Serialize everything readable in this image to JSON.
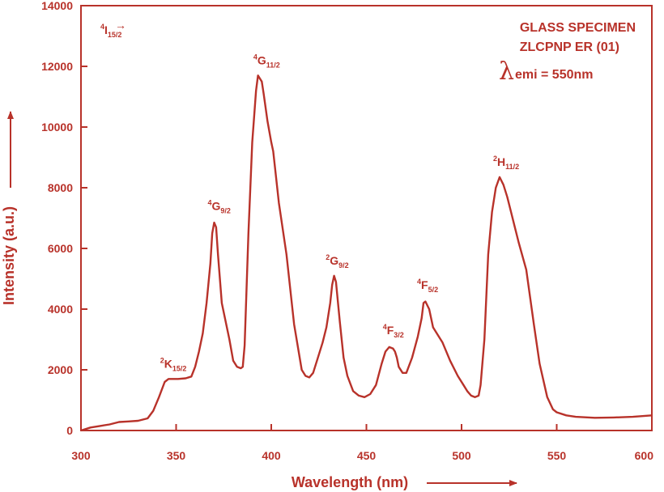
{
  "colors": {
    "accent": "#b8322a",
    "background": "#ffffff"
  },
  "chart_data": {
    "type": "line",
    "xlabel": "Wavelength (nm)",
    "ylabel": "Intensity (a.u.)",
    "xlim": [
      300,
      600
    ],
    "ylim": [
      0,
      14000
    ],
    "xticks": [
      "300",
      "350",
      "400",
      "450",
      "500",
      "550",
      "600"
    ],
    "yticks": [
      "0",
      "2000",
      "4000",
      "6000",
      "8000",
      "10000",
      "12000",
      "14000"
    ],
    "grid": false,
    "legend": {
      "line1": "GLASS SPECIMEN",
      "line2": "ZLCPNP ER (01)",
      "lambda_symbol": "λ",
      "emission": "emi = 550nm"
    },
    "transition_label": {
      "sup": "4",
      "main": "I",
      "sub": "15/2",
      "arrow": "→"
    },
    "annotations": [
      {
        "sup": "2",
        "main": "K",
        "sub": "15/2",
        "x": 345,
        "y": 1700
      },
      {
        "sup": "4",
        "main": "G",
        "sub": "9/2",
        "x": 370,
        "y": 6900
      },
      {
        "sup": "4",
        "main": "G",
        "sub": "11/2",
        "x": 394,
        "y": 11700
      },
      {
        "sup": "2",
        "main": "G",
        "sub": "9/2",
        "x": 432,
        "y": 5100
      },
      {
        "sup": "4",
        "main": "F",
        "sub": "3/2",
        "x": 462,
        "y": 2800
      },
      {
        "sup": "4",
        "main": "F",
        "sub": "5/2",
        "x": 480,
        "y": 4300
      },
      {
        "sup": "2",
        "main": "H",
        "sub": "11/2",
        "x": 520,
        "y": 8350
      }
    ],
    "series": [
      {
        "x": [
          300,
          305,
          310,
          315,
          320,
          325,
          330,
          335,
          338,
          341,
          344,
          346,
          348,
          351,
          355,
          358,
          360,
          362,
          364,
          366,
          368,
          369,
          370,
          371,
          372,
          374,
          376,
          378,
          380,
          382,
          384,
          385,
          386,
          388,
          390,
          392,
          393,
          394,
          395,
          396,
          398,
          400,
          401,
          404,
          408,
          412,
          416,
          418,
          420,
          422,
          424,
          427,
          429,
          431,
          432,
          433,
          434,
          436,
          438,
          440,
          443,
          446,
          449,
          452,
          455,
          458,
          460,
          462,
          464,
          465,
          466,
          467,
          469,
          471,
          474,
          477,
          479,
          480,
          481,
          483,
          485,
          488,
          490,
          494,
          498,
          501,
          503,
          505,
          507,
          509,
          510,
          512,
          514,
          516,
          518,
          520,
          522,
          524,
          526,
          528,
          530,
          534,
          538,
          541,
          545,
          548,
          550,
          555,
          560,
          570,
          580,
          590,
          600
        ],
        "y": [
          0,
          100,
          150,
          200,
          280,
          300,
          320,
          400,
          650,
          1100,
          1600,
          1700,
          1700,
          1700,
          1720,
          1780,
          2100,
          2600,
          3200,
          4200,
          5500,
          6500,
          6850,
          6700,
          5800,
          4200,
          3600,
          3000,
          2300,
          2100,
          2050,
          2100,
          2800,
          6500,
          9500,
          11200,
          11700,
          11600,
          11500,
          11100,
          10200,
          9500,
          9200,
          7500,
          5800,
          3500,
          2000,
          1800,
          1750,
          1900,
          2300,
          2900,
          3400,
          4200,
          4800,
          5100,
          4900,
          3600,
          2400,
          1800,
          1300,
          1150,
          1100,
          1200,
          1500,
          2200,
          2600,
          2750,
          2700,
          2600,
          2400,
          2100,
          1900,
          1900,
          2400,
          3100,
          3700,
          4200,
          4250,
          4000,
          3400,
          3100,
          2900,
          2300,
          1800,
          1500,
          1300,
          1150,
          1100,
          1150,
          1500,
          3000,
          5800,
          7200,
          8000,
          8350,
          8100,
          7700,
          7200,
          6700,
          6200,
          5300,
          3500,
          2200,
          1100,
          700,
          600,
          500,
          450,
          420,
          430,
          450,
          500
        ]
      }
    ]
  }
}
